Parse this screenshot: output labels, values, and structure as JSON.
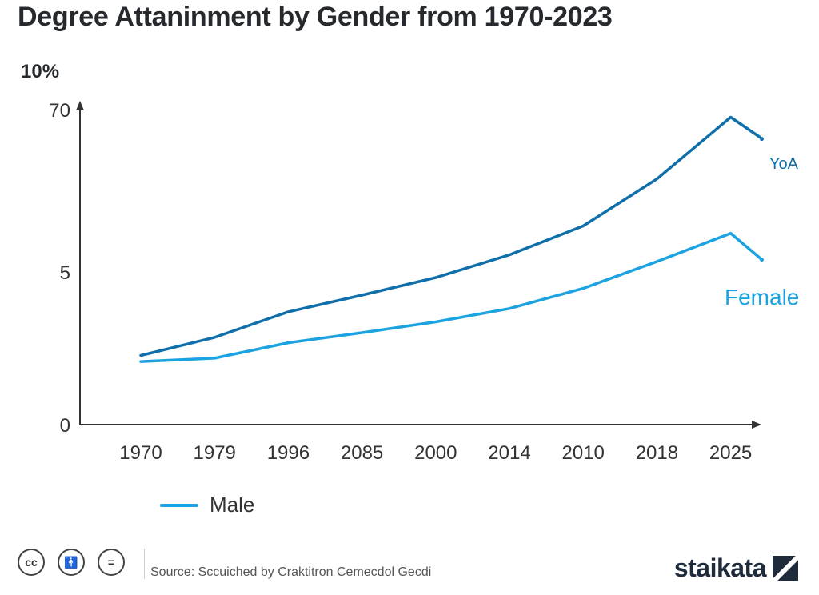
{
  "header": {
    "title": "Degree Attaninment by Gender from 1970-2023",
    "unit": "10%"
  },
  "legend": {
    "label": "Male",
    "color": "#1aa3e0"
  },
  "footer": {
    "icons": [
      "cc-icon",
      "person-icon",
      "equals-icon"
    ],
    "source": "Source: Sccuiched by Craktitron Cemecdol Gecdi",
    "brand": "staikata"
  },
  "chart_data": {
    "type": "line",
    "title": "Degree Attaninment by Gender from 1970-2023",
    "ylabel": "10%",
    "y_tick_labels": [
      "0",
      "5",
      "70"
    ],
    "categories": [
      "1970",
      "1979",
      "1996",
      "2085",
      "2000",
      "2014",
      "2010",
      "2018",
      "2025"
    ],
    "grid": false,
    "series": [
      {
        "name": "YoA",
        "color": "#0f6fab",
        "points": [
          {
            "x": 0,
            "y": 10.3
          },
          {
            "x": 1,
            "y": 13.0
          },
          {
            "x": 2,
            "y": 16.8
          },
          {
            "x": 3,
            "y": 19.3
          },
          {
            "x": 4,
            "y": 21.9
          },
          {
            "x": 5,
            "y": 25.3
          },
          {
            "x": 6,
            "y": 29.6
          },
          {
            "x": 7,
            "y": 36.6
          },
          {
            "x": 8,
            "y": 45.8
          },
          {
            "x": 8.4,
            "y": 42.8
          }
        ]
      },
      {
        "name": "Female",
        "color": "#1aa3e0",
        "points": [
          {
            "x": 0,
            "y": 9.4
          },
          {
            "x": 1,
            "y": 9.9
          },
          {
            "x": 2,
            "y": 12.2
          },
          {
            "x": 3,
            "y": 13.7
          },
          {
            "x": 4,
            "y": 15.3
          },
          {
            "x": 5,
            "y": 17.3
          },
          {
            "x": 6,
            "y": 20.3
          },
          {
            "x": 7,
            "y": 24.3
          },
          {
            "x": 8,
            "y": 28.5
          },
          {
            "x": 8.4,
            "y": 24.8
          }
        ]
      }
    ]
  }
}
